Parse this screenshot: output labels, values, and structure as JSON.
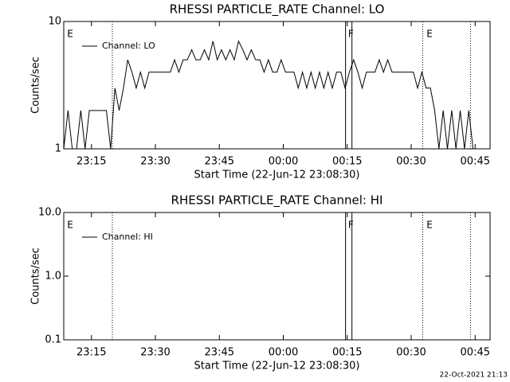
{
  "chart_data": [
    {
      "type": "line",
      "title": "RHESSI PARTICLE_RATE Channel: LO",
      "xlabel": "Start Time (22-Jun-12 23:08:30)",
      "ylabel": "Counts/sec",
      "log_y": true,
      "xlim": [
        0,
        100
      ],
      "ylim": [
        1,
        10
      ],
      "xticks": [
        {
          "value": 6.5,
          "label": "23:15"
        },
        {
          "value": 21.5,
          "label": "23:30"
        },
        {
          "value": 36.5,
          "label": "23:45"
        },
        {
          "value": 51.5,
          "label": "00:00"
        },
        {
          "value": 66.5,
          "label": "00:15"
        },
        {
          "value": 81.5,
          "label": "00:30"
        },
        {
          "value": 96.5,
          "label": "00:45"
        }
      ],
      "yticks": [
        1,
        10
      ],
      "x": [
        0,
        1,
        2,
        3,
        4,
        5,
        6,
        7,
        8,
        9,
        10,
        11,
        12,
        13,
        14,
        15,
        16,
        17,
        18,
        19,
        20,
        21,
        22,
        23,
        24,
        25,
        26,
        27,
        28,
        29,
        30,
        31,
        32,
        33,
        34,
        35,
        36,
        37,
        38,
        39,
        40,
        41,
        42,
        43,
        44,
        45,
        46,
        47,
        48,
        49,
        50,
        51,
        52,
        53,
        54,
        55,
        56,
        57,
        58,
        59,
        60,
        61,
        62,
        63,
        64,
        65,
        66,
        67,
        68,
        69,
        70,
        71,
        72,
        73,
        74,
        75,
        76,
        77,
        78,
        79,
        80,
        81,
        82,
        83,
        84,
        85,
        86,
        87,
        88,
        89,
        90,
        91,
        92,
        93,
        94,
        95,
        96,
        97,
        98,
        99
      ],
      "series": [
        {
          "name": "Channel: LO",
          "color": "#000000",
          "values": [
            1,
            2,
            1,
            1,
            2,
            1,
            2,
            2,
            2,
            2,
            2,
            1,
            3,
            2,
            3,
            5,
            4,
            3,
            4,
            3,
            4,
            4,
            4,
            4,
            4,
            4,
            5,
            4,
            5,
            5,
            6,
            5,
            5,
            6,
            5,
            7,
            5,
            6,
            5,
            6,
            5,
            7,
            6,
            5,
            6,
            5,
            5,
            4,
            5,
            4,
            4,
            5,
            4,
            4,
            4,
            3,
            4,
            3,
            4,
            3,
            4,
            3,
            4,
            3,
            4,
            4,
            3,
            4,
            5,
            4,
            3,
            4,
            4,
            4,
            5,
            4,
            5,
            4,
            4,
            4,
            4,
            4,
            4,
            3,
            4,
            3,
            3,
            2,
            1,
            2,
            1,
            2,
            1,
            2,
            1,
            2,
            1,
            1,
            1,
            1
          ]
        }
      ],
      "vlines": [
        {
          "value": 11.4,
          "style": "dotted"
        },
        {
          "value": 66.1,
          "style": "solid"
        },
        {
          "value": 67.6,
          "style": "solid"
        },
        {
          "value": 84.2,
          "style": "dotted"
        },
        {
          "value": 95.4,
          "style": "dotted"
        }
      ],
      "annotations": [
        {
          "text": "E",
          "x": 0.8
        },
        {
          "text": "F",
          "x": 66.7
        },
        {
          "text": "E",
          "x": 85.1
        }
      ]
    },
    {
      "type": "line",
      "title": "RHESSI PARTICLE_RATE Channel: HI",
      "xlabel": "Start Time (22-Jun-12 23:08:30)",
      "ylabel": "Counts/sec",
      "log_y": true,
      "xlim": [
        0,
        100
      ],
      "ylim": [
        0.1,
        10
      ],
      "xticks": [
        {
          "value": 6.5,
          "label": "23:15"
        },
        {
          "value": 21.5,
          "label": "23:30"
        },
        {
          "value": 36.5,
          "label": "23:45"
        },
        {
          "value": 51.5,
          "label": "00:00"
        },
        {
          "value": 66.5,
          "label": "00:15"
        },
        {
          "value": 81.5,
          "label": "00:30"
        },
        {
          "value": 96.5,
          "label": "00:45"
        }
      ],
      "yticks": [
        0.1,
        {
          "value": 1,
          "label": "1.0"
        },
        {
          "value": 10,
          "label": "10.0"
        }
      ],
      "x": [],
      "series": [
        {
          "name": "Channel: HI",
          "color": "#000000",
          "values": []
        }
      ],
      "vlines": [
        {
          "value": 11.4,
          "style": "dotted"
        },
        {
          "value": 66.1,
          "style": "solid"
        },
        {
          "value": 67.6,
          "style": "solid"
        },
        {
          "value": 84.2,
          "style": "dotted"
        },
        {
          "value": 95.4,
          "style": "dotted"
        }
      ],
      "annotations": [
        {
          "text": "E",
          "x": 0.8
        },
        {
          "text": "F",
          "x": 66.7
        },
        {
          "text": "E",
          "x": 85.1
        }
      ]
    }
  ],
  "footer": "22-Oct-2021 21:13"
}
